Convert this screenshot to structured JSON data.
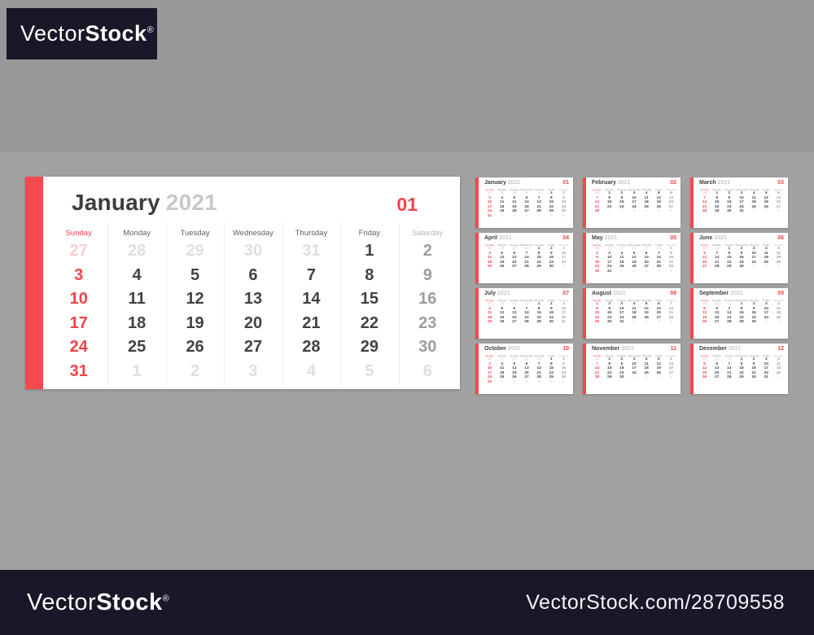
{
  "background": {
    "outer": "#989898",
    "content_band": "#a1a1a1"
  },
  "accent_color": "#f2444a",
  "watermark": {
    "brand_regular": "Vector",
    "brand_bold": "Stock",
    "registered_mark": "®",
    "site_ref": "VectorStock.com/28709558",
    "bar_color": "#181829"
  },
  "day_names": [
    "Sunday",
    "Monday",
    "Tuesday",
    "Wednesday",
    "Thursday",
    "Friday",
    "Saturday"
  ],
  "main_calendar": {
    "month": "January",
    "year": "2021",
    "number": "01",
    "rows": [
      [
        "ps|27",
        "pw|28",
        "pw|29",
        "pw|30",
        "pw|31",
        "w|1",
        "a|2"
      ],
      [
        "s|3",
        "w|4",
        "w|5",
        "w|6",
        "w|7",
        "w|8",
        "a|9"
      ],
      [
        "s|10",
        "w|11",
        "w|12",
        "w|13",
        "w|14",
        "w|15",
        "a|16"
      ],
      [
        "s|17",
        "w|18",
        "w|19",
        "w|20",
        "w|21",
        "w|22",
        "a|23"
      ],
      [
        "s|24",
        "w|25",
        "w|26",
        "w|27",
        "w|28",
        "w|29",
        "a|30"
      ],
      [
        "s|31",
        "pw|1",
        "pw|2",
        "pw|3",
        "pw|4",
        "pw|5",
        "pw|6"
      ]
    ]
  },
  "mini_calendars": [
    {
      "month": "January",
      "year": "2021",
      "number": "01",
      "rows": [
        [
          "ps|27",
          "pw|28",
          "pw|29",
          "pw|30",
          "pw|31",
          "w|1",
          "a|2"
        ],
        [
          "s|3",
          "w|4",
          "w|5",
          "w|6",
          "w|7",
          "w|8",
          "a|9"
        ],
        [
          "s|10",
          "w|11",
          "w|12",
          "w|13",
          "w|14",
          "w|15",
          "a|16"
        ],
        [
          "s|17",
          "w|18",
          "w|19",
          "w|20",
          "w|21",
          "w|22",
          "a|23"
        ],
        [
          "s|24",
          "w|25",
          "w|26",
          "w|27",
          "w|28",
          "w|29",
          "a|30"
        ],
        [
          "s|31",
          "pw|1",
          "pw|2",
          "pw|3",
          "pw|4",
          "pw|5",
          "pw|6"
        ]
      ]
    },
    {
      "month": "February",
      "year": "2021",
      "number": "02",
      "rows": [
        [
          "ps|31",
          "w|1",
          "w|2",
          "w|3",
          "w|4",
          "w|5",
          "a|6"
        ],
        [
          "s|7",
          "w|8",
          "w|9",
          "w|10",
          "w|11",
          "w|12",
          "a|13"
        ],
        [
          "s|14",
          "w|15",
          "w|16",
          "w|17",
          "w|18",
          "w|19",
          "a|20"
        ],
        [
          "s|21",
          "w|22",
          "w|23",
          "w|24",
          "w|25",
          "w|26",
          "a|27"
        ],
        [
          "s|28",
          "pw|1",
          "pw|2",
          "pw|3",
          "pw|4",
          "pw|5",
          "pw|6"
        ]
      ]
    },
    {
      "month": "March",
      "year": "2021",
      "number": "03",
      "rows": [
        [
          "ps|28",
          "w|1",
          "w|2",
          "w|3",
          "w|4",
          "w|5",
          "a|6"
        ],
        [
          "s|7",
          "w|8",
          "w|9",
          "w|10",
          "w|11",
          "w|12",
          "a|13"
        ],
        [
          "s|14",
          "w|15",
          "w|16",
          "w|17",
          "w|18",
          "w|19",
          "a|20"
        ],
        [
          "s|21",
          "w|22",
          "w|23",
          "w|24",
          "w|25",
          "w|26",
          "a|27"
        ],
        [
          "s|28",
          "w|29",
          "w|30",
          "w|31",
          "pw|1",
          "pw|2",
          "pw|3"
        ]
      ]
    },
    {
      "month": "April",
      "year": "2021",
      "number": "04",
      "rows": [
        [
          "ps|28",
          "pw|29",
          "pw|30",
          "pw|31",
          "w|1",
          "w|2",
          "a|3"
        ],
        [
          "s|4",
          "w|5",
          "w|6",
          "w|7",
          "w|8",
          "w|9",
          "a|10"
        ],
        [
          "s|11",
          "w|12",
          "w|13",
          "w|14",
          "w|15",
          "w|16",
          "a|17"
        ],
        [
          "s|18",
          "w|19",
          "w|20",
          "w|21",
          "w|22",
          "w|23",
          "a|24"
        ],
        [
          "s|25",
          "w|26",
          "w|27",
          "w|28",
          "w|29",
          "w|30",
          "pw|1"
        ]
      ]
    },
    {
      "month": "May",
      "year": "2021",
      "number": "05",
      "rows": [
        [
          "ps|25",
          "pw|26",
          "pw|27",
          "pw|28",
          "pw|29",
          "pw|30",
          "a|1"
        ],
        [
          "s|2",
          "w|3",
          "w|4",
          "w|5",
          "w|6",
          "w|7",
          "a|8"
        ],
        [
          "s|9",
          "w|10",
          "w|11",
          "w|12",
          "w|13",
          "w|14",
          "a|15"
        ],
        [
          "s|16",
          "w|17",
          "w|18",
          "w|19",
          "w|20",
          "w|21",
          "a|22"
        ],
        [
          "s|23",
          "w|24",
          "w|25",
          "w|26",
          "w|27",
          "w|28",
          "a|29"
        ],
        [
          "s|30",
          "w|31",
          "pw|1",
          "pw|2",
          "pw|3",
          "pw|4",
          "pw|5"
        ]
      ]
    },
    {
      "month": "June",
      "year": "2021",
      "number": "06",
      "rows": [
        [
          "ps|30",
          "pw|31",
          "w|1",
          "w|2",
          "w|3",
          "w|4",
          "a|5"
        ],
        [
          "s|6",
          "w|7",
          "w|8",
          "w|9",
          "w|10",
          "w|11",
          "a|12"
        ],
        [
          "s|13",
          "w|14",
          "w|15",
          "w|16",
          "w|17",
          "w|18",
          "a|19"
        ],
        [
          "s|20",
          "w|21",
          "w|22",
          "w|23",
          "w|24",
          "w|25",
          "a|26"
        ],
        [
          "s|27",
          "w|28",
          "w|29",
          "w|30",
          "pw|1",
          "pw|2",
          "pw|3"
        ]
      ]
    },
    {
      "month": "July",
      "year": "2021",
      "number": "07",
      "rows": [
        [
          "ps|27",
          "pw|28",
          "pw|29",
          "pw|30",
          "w|1",
          "w|2",
          "a|3"
        ],
        [
          "s|4",
          "w|5",
          "w|6",
          "w|7",
          "w|8",
          "w|9",
          "a|10"
        ],
        [
          "s|11",
          "w|12",
          "w|13",
          "w|14",
          "w|15",
          "w|16",
          "a|17"
        ],
        [
          "s|18",
          "w|19",
          "w|20",
          "w|21",
          "w|22",
          "w|23",
          "a|24"
        ],
        [
          "s|25",
          "w|26",
          "w|27",
          "w|28",
          "w|29",
          "w|30",
          "a|31"
        ]
      ]
    },
    {
      "month": "August",
      "year": "2021",
      "number": "08",
      "rows": [
        [
          "s|1",
          "w|2",
          "w|3",
          "w|4",
          "w|5",
          "w|6",
          "a|7"
        ],
        [
          "s|8",
          "w|9",
          "w|10",
          "w|11",
          "w|12",
          "w|13",
          "a|14"
        ],
        [
          "s|15",
          "w|16",
          "w|17",
          "w|18",
          "w|19",
          "w|20",
          "a|21"
        ],
        [
          "s|22",
          "w|23",
          "w|24",
          "w|25",
          "w|26",
          "w|27",
          "a|28"
        ],
        [
          "s|29",
          "w|30",
          "w|31",
          "pw|1",
          "pw|2",
          "pw|3",
          "pw|4"
        ]
      ]
    },
    {
      "month": "September",
      "year": "2021",
      "number": "09",
      "rows": [
        [
          "ps|29",
          "pw|30",
          "pw|31",
          "w|1",
          "w|2",
          "w|3",
          "a|4"
        ],
        [
          "s|5",
          "w|6",
          "w|7",
          "w|8",
          "w|9",
          "w|10",
          "a|11"
        ],
        [
          "s|12",
          "w|13",
          "w|14",
          "w|15",
          "w|16",
          "w|17",
          "a|18"
        ],
        [
          "s|19",
          "w|20",
          "w|21",
          "w|22",
          "w|23",
          "w|24",
          "a|25"
        ],
        [
          "s|26",
          "w|27",
          "w|28",
          "w|29",
          "w|30",
          "pw|1",
          "pw|2"
        ]
      ]
    },
    {
      "month": "October",
      "year": "2021",
      "number": "10",
      "rows": [
        [
          "ps|26",
          "pw|27",
          "pw|28",
          "pw|29",
          "pw|30",
          "w|1",
          "a|2"
        ],
        [
          "s|3",
          "w|4",
          "w|5",
          "w|6",
          "w|7",
          "w|8",
          "a|9"
        ],
        [
          "s|10",
          "w|11",
          "w|12",
          "w|13",
          "w|14",
          "w|15",
          "a|16"
        ],
        [
          "s|17",
          "w|18",
          "w|19",
          "w|20",
          "w|21",
          "w|22",
          "a|23"
        ],
        [
          "s|24",
          "w|25",
          "w|26",
          "w|27",
          "w|28",
          "w|29",
          "a|30"
        ],
        [
          "s|31",
          "pw|1",
          "pw|2",
          "pw|3",
          "pw|4",
          "pw|5",
          "pw|6"
        ]
      ]
    },
    {
      "month": "November",
      "year": "2021",
      "number": "11",
      "rows": [
        [
          "ps|31",
          "w|1",
          "w|2",
          "w|3",
          "w|4",
          "w|5",
          "a|6"
        ],
        [
          "s|7",
          "w|8",
          "w|9",
          "w|10",
          "w|11",
          "w|12",
          "a|13"
        ],
        [
          "s|14",
          "w|15",
          "w|16",
          "w|17",
          "w|18",
          "w|19",
          "a|20"
        ],
        [
          "s|21",
          "w|22",
          "w|23",
          "w|24",
          "w|25",
          "w|26",
          "a|27"
        ],
        [
          "s|28",
          "w|29",
          "w|30",
          "pw|1",
          "pw|2",
          "pw|3",
          "pw|4"
        ]
      ]
    },
    {
      "month": "December",
      "year": "2021",
      "number": "12",
      "rows": [
        [
          "ps|28",
          "pw|29",
          "pw|30",
          "w|1",
          "w|2",
          "w|3",
          "a|4"
        ],
        [
          "s|5",
          "w|6",
          "w|7",
          "w|8",
          "w|9",
          "w|10",
          "a|11"
        ],
        [
          "s|12",
          "w|13",
          "w|14",
          "w|15",
          "w|16",
          "w|17",
          "a|18"
        ],
        [
          "s|19",
          "w|20",
          "w|21",
          "w|22",
          "w|23",
          "w|24",
          "a|25"
        ],
        [
          "s|26",
          "w|27",
          "w|28",
          "w|29",
          "w|30",
          "w|31",
          "pw|1"
        ]
      ]
    }
  ]
}
